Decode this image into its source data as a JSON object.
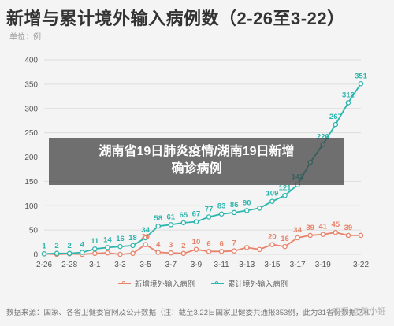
{
  "title": "新增与累计境外输入病例数（2-26至3-22）",
  "unit_label": "单位：例",
  "banner": {
    "line1": "湖南省19日肺炎疫情/湖南19日新增",
    "line2": "确诊病例"
  },
  "source_note": "数据来源：国家、各省卫健委官网及公开数据（注：截至3.22日国家卫健委共通报353例，此为31省份数据之和）",
  "watermark": "知乎 @黄小锤",
  "chart_data": {
    "type": "line",
    "title": "新增与累计境外输入病例数（2-26至3-22）",
    "ylim": [
      0,
      400
    ],
    "yticks": [
      0,
      50,
      100,
      150,
      200,
      250,
      300,
      350,
      400
    ],
    "x": [
      "2-26",
      "2-27",
      "2-28",
      "2-29",
      "3-1",
      "3-2",
      "3-3",
      "3-4",
      "3-5",
      "3-6",
      "3-7",
      "3-8",
      "3-9",
      "3-10",
      "3-11",
      "3-12",
      "3-13",
      "3-14",
      "3-15",
      "3-16",
      "3-17",
      "3-18",
      "3-19",
      "3-20",
      "3-21",
      "3-22"
    ],
    "xtick_labels": [
      "2-26",
      "2-28",
      "3-1",
      "3-3",
      "3-5",
      "3-7",
      "3-9",
      "3-11",
      "3-13",
      "3-15",
      "3-17",
      "3-19",
      "3-22"
    ],
    "grid": true,
    "legend_position": "bottom",
    "series": [
      {
        "name": "新增境外输入病例",
        "color": "#e8836b",
        "values": [
          1,
          0,
          1,
          0,
          2,
          3,
          0,
          2,
          20,
          4,
          3,
          2,
          10,
          6,
          6,
          7,
          14,
          10,
          20,
          16,
          34,
          39,
          41,
          45,
          39,
          39
        ],
        "labels": [
          null,
          null,
          null,
          null,
          null,
          null,
          null,
          null,
          20,
          4,
          3,
          2,
          10,
          6,
          6,
          7,
          null,
          null,
          20,
          16,
          34,
          39,
          41,
          45,
          39,
          null
        ]
      },
      {
        "name": "累计境外输入病例",
        "color": "#2bb6ad",
        "values": [
          1,
          2,
          2,
          4,
          11,
          14,
          16,
          18,
          34,
          58,
          61,
          65,
          67,
          77,
          83,
          86,
          90,
          95,
          109,
          121,
          143,
          189,
          226,
          267,
          312,
          351
        ],
        "labels": [
          1,
          2,
          2,
          4,
          11,
          14,
          16,
          18,
          34,
          58,
          61,
          65,
          67,
          77,
          83,
          86,
          90,
          null,
          109,
          121,
          143,
          null,
          226,
          267,
          312,
          351
        ]
      }
    ]
  }
}
